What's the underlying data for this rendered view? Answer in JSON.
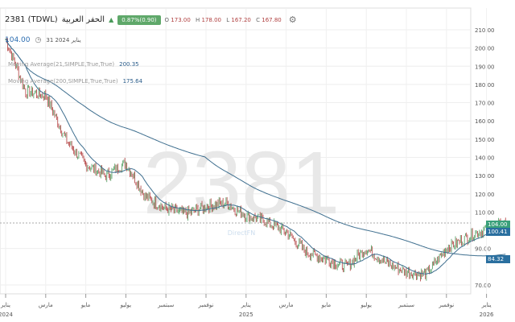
{
  "header": {
    "symbol": "2381 (TDWL)",
    "name": "الحفر العربية",
    "change": "0.87%(0.90)",
    "open_label": "O",
    "open": "173.00",
    "high_label": "H",
    "high": "178.00",
    "low_label": "L",
    "low": "167.20",
    "close_label": "C",
    "close": "167.80",
    "last_price": "104.00",
    "date": "يناير 2024 31"
  },
  "indicators": [
    {
      "label": "Moving Average(21,SIMPLE,True,True)",
      "value": "200.35"
    },
    {
      "label": "Moving Average(200,SIMPLE,True,True)",
      "value": "175.64"
    }
  ],
  "price_labels": {
    "last": "104.00",
    "ma21": "100.41",
    "ma200": "84.32"
  },
  "watermark": "2381",
  "brand": "DirectFN",
  "colors": {
    "up": "#4a9a5a",
    "down": "#b03a3a",
    "ma": "#3f6f8f",
    "last": "#3aa07a",
    "label": "#2a6f9f"
  },
  "chart_data": {
    "type": "candlestick",
    "ylim": [
      65,
      215
    ],
    "yticks": [
      "210.00",
      "200.00",
      "190.00",
      "180.00",
      "170.00",
      "160.00",
      "150.00",
      "140.00",
      "130.00",
      "120.00",
      "110.00",
      "90.00",
      "70.00"
    ],
    "ytick_values": [
      210,
      200,
      190,
      180,
      170,
      160,
      150,
      140,
      130,
      120,
      110,
      90,
      70
    ],
    "xticks": [
      {
        "m": 0,
        "label": "يناير",
        "year": "2024"
      },
      {
        "m": 2,
        "label": "مارس"
      },
      {
        "m": 4,
        "label": "مايو"
      },
      {
        "m": 6,
        "label": "يوليو"
      },
      {
        "m": 8,
        "label": "سبتمبر"
      },
      {
        "m": 10,
        "label": "نوفمبر"
      },
      {
        "m": 12,
        "label": "يناير",
        "year": "2025"
      },
      {
        "m": 14,
        "label": "مارس"
      },
      {
        "m": 16,
        "label": "مايو"
      },
      {
        "m": 18,
        "label": "يوليو"
      },
      {
        "m": 20,
        "label": "سبتمبر"
      },
      {
        "m": 22,
        "label": "نوفمبر"
      },
      {
        "m": 24,
        "label": "يناير",
        "year": "2026"
      }
    ],
    "monthly_close": [
      205,
      176,
      174,
      150,
      136,
      130,
      137,
      118,
      112,
      109,
      113,
      115,
      108,
      105,
      99,
      88,
      84,
      80,
      90,
      82,
      77,
      76,
      90,
      96,
      101,
      104
    ]
  }
}
